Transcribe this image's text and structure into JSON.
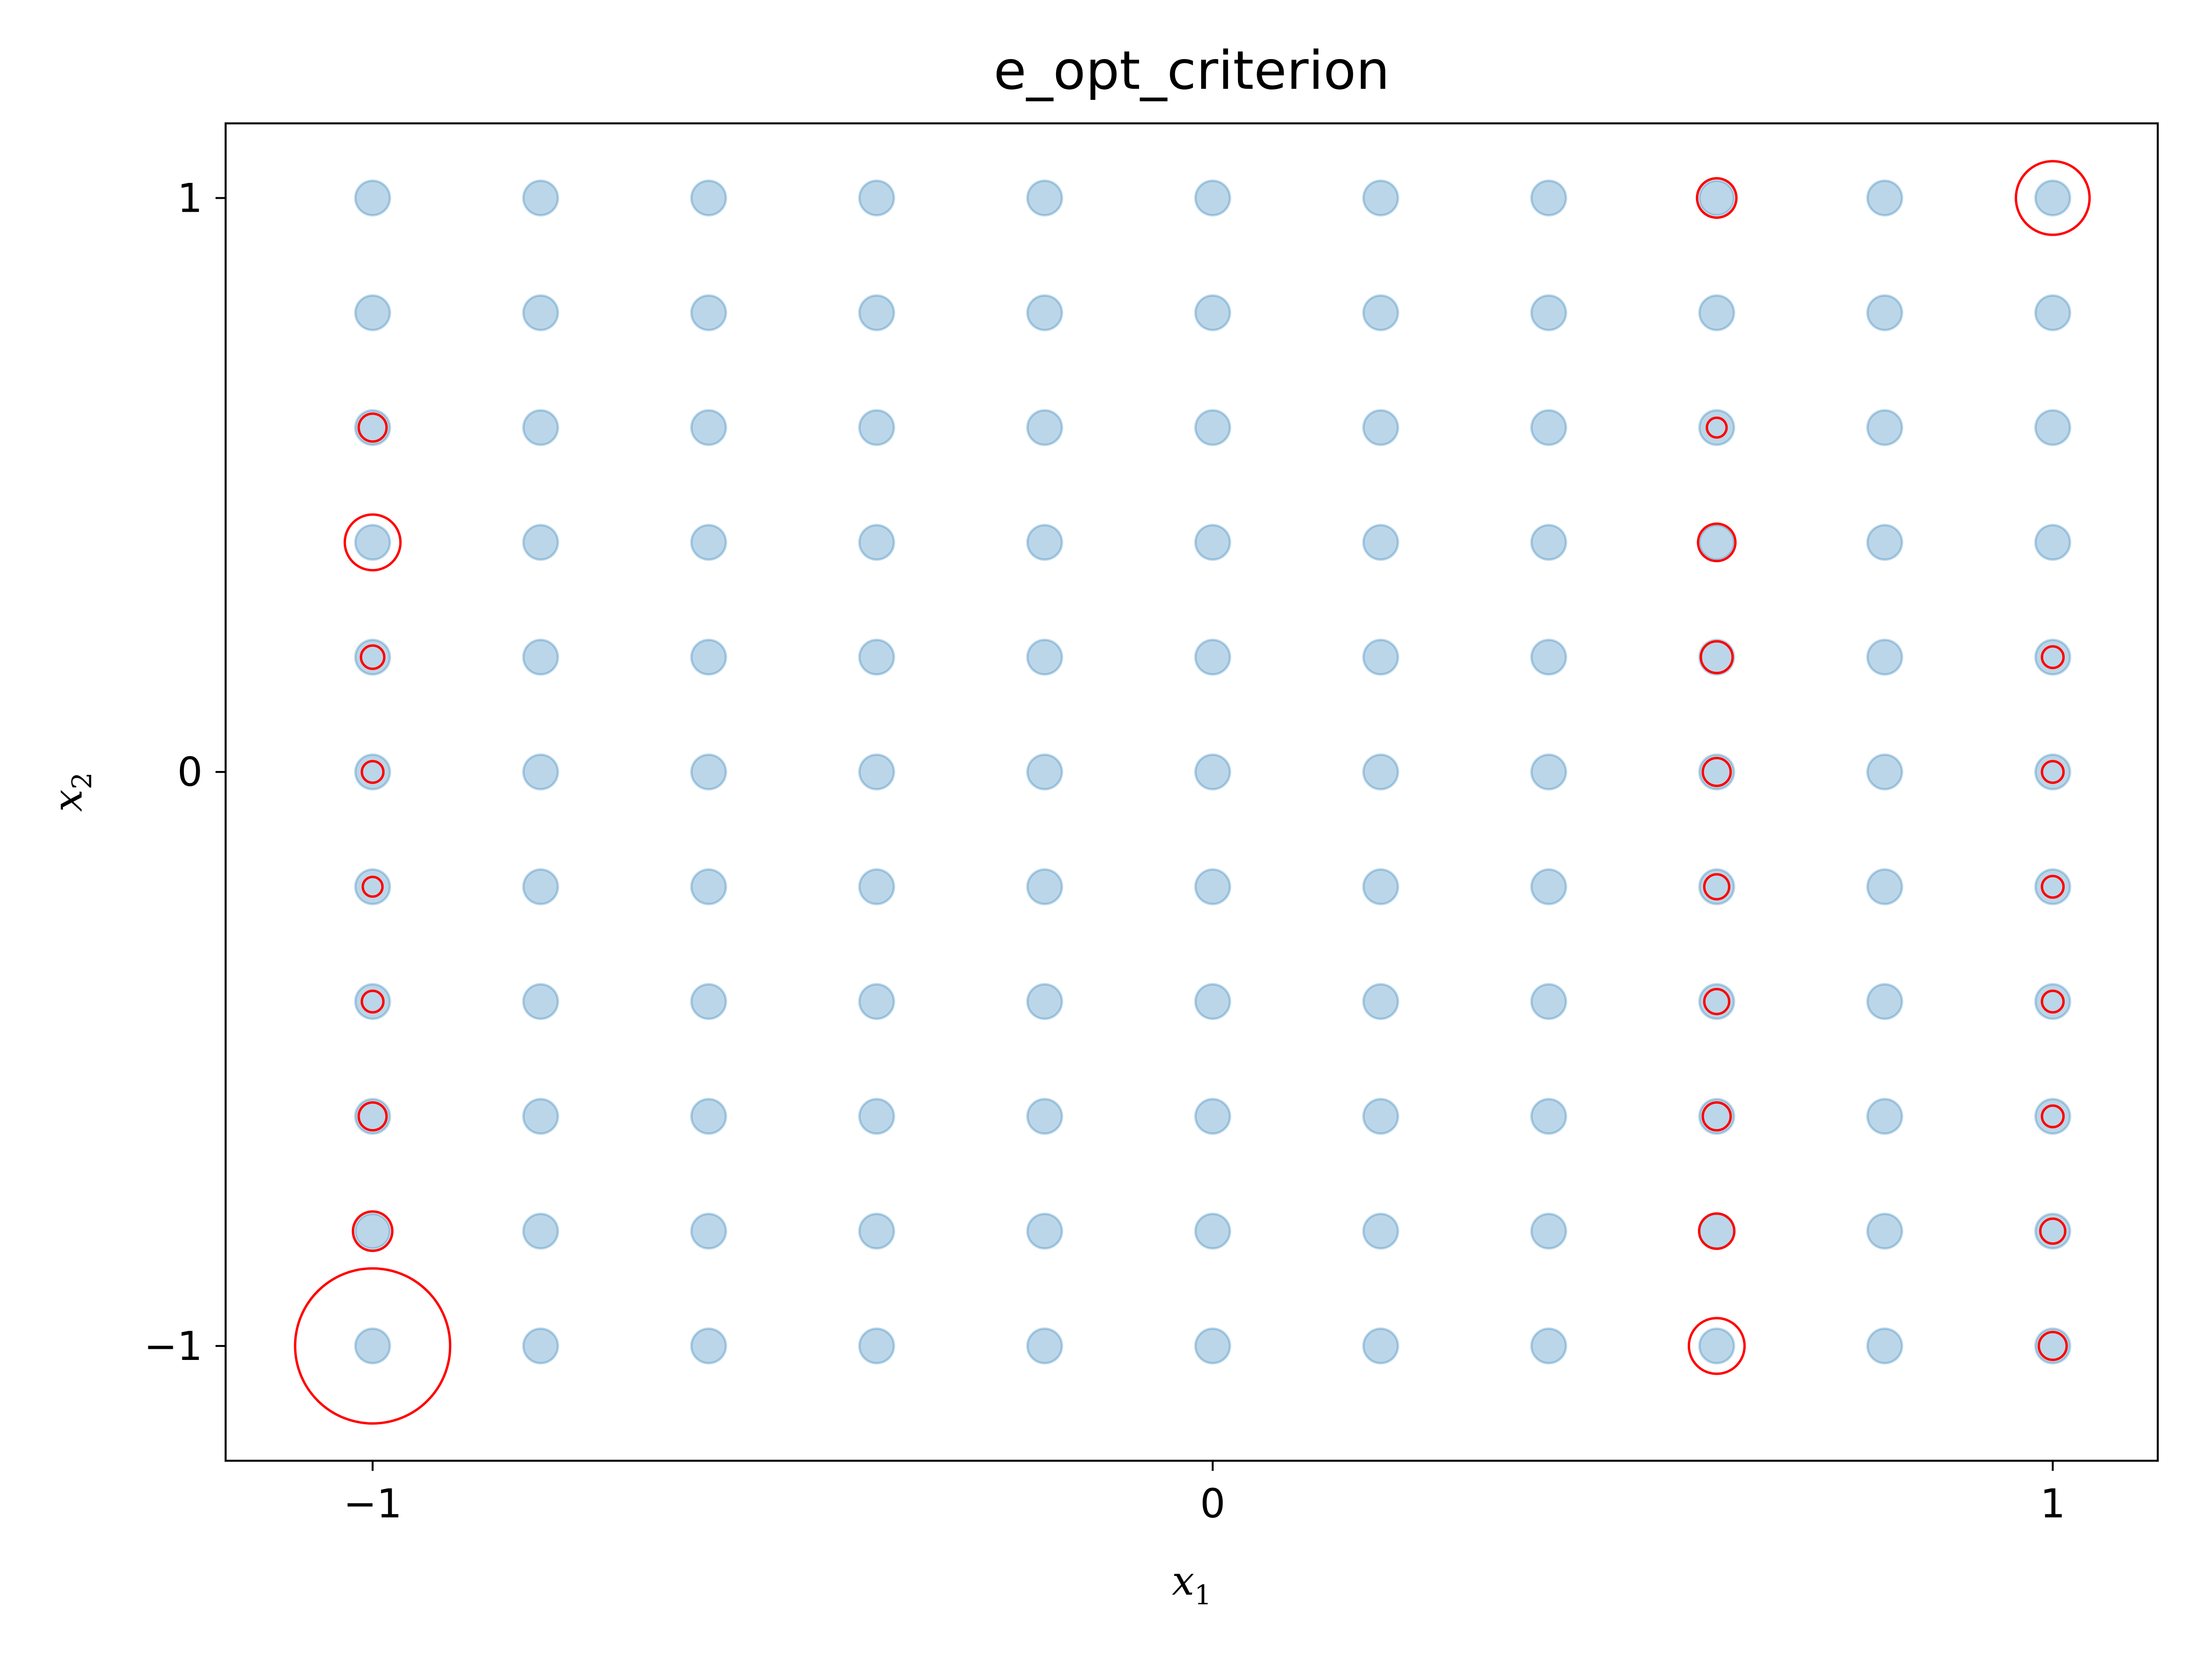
{
  "chart_data": {
    "type": "scatter",
    "title": "e_opt_criterion",
    "xlabel": {
      "base": "x",
      "sub": "1"
    },
    "ylabel": {
      "base": "x",
      "sub": "2"
    },
    "xlim": [
      -1.175,
      1.125
    ],
    "ylim": [
      -1.2,
      1.13
    ],
    "xticks": [
      -1,
      0,
      1
    ],
    "yticks": [
      -1,
      0,
      1
    ],
    "xtick_labels": [
      "−1",
      "0",
      "1"
    ],
    "ytick_labels": [
      "−1",
      "0",
      "1"
    ],
    "grid": false,
    "legend": "none",
    "colors": {
      "candidates": "#1f77b4",
      "candidates_alpha": 0.3,
      "design": "#ff0000"
    },
    "candidate_grid": {
      "x": [
        -1,
        -0.8,
        -0.6,
        -0.4,
        -0.2,
        0,
        0.2,
        0.4,
        0.6,
        0.8,
        1
      ],
      "y": [
        -1,
        -0.8,
        -0.6,
        -0.4,
        -0.2,
        0,
        0.2,
        0.4,
        0.6,
        0.8,
        1
      ]
    },
    "design_points": [
      {
        "x": -1,
        "y": -1,
        "weight": 0.31
      },
      {
        "x": -1,
        "y": -0.8,
        "weight": 0.02
      },
      {
        "x": -1,
        "y": -0.6,
        "weight": 0.01
      },
      {
        "x": -1,
        "y": -0.4,
        "weight": 0.006
      },
      {
        "x": -1,
        "y": -0.2,
        "weight": 0.005
      },
      {
        "x": -1,
        "y": 0,
        "weight": 0.006
      },
      {
        "x": -1,
        "y": 0.2,
        "weight": 0.007
      },
      {
        "x": -1,
        "y": 0.4,
        "weight": 0.04
      },
      {
        "x": -1,
        "y": 0.6,
        "weight": 0.01
      },
      {
        "x": 0.6,
        "y": 1,
        "weight": 0.02
      },
      {
        "x": 0.6,
        "y": 0.6,
        "weight": 0.005
      },
      {
        "x": 0.6,
        "y": 0.4,
        "weight": 0.018
      },
      {
        "x": 0.6,
        "y": 0.2,
        "weight": 0.013
      },
      {
        "x": 0.6,
        "y": 0,
        "weight": 0.01
      },
      {
        "x": 0.6,
        "y": -0.2,
        "weight": 0.008
      },
      {
        "x": 0.6,
        "y": -0.4,
        "weight": 0.008
      },
      {
        "x": 0.6,
        "y": -0.6,
        "weight": 0.01
      },
      {
        "x": 0.6,
        "y": -0.8,
        "weight": 0.016
      },
      {
        "x": 0.6,
        "y": -1,
        "weight": 0.04
      },
      {
        "x": 1,
        "y": 1,
        "weight": 0.07
      },
      {
        "x": 1,
        "y": 0.2,
        "weight": 0.006
      },
      {
        "x": 1,
        "y": 0,
        "weight": 0.006
      },
      {
        "x": 1,
        "y": -0.2,
        "weight": 0.006
      },
      {
        "x": 1,
        "y": -0.4,
        "weight": 0.006
      },
      {
        "x": 1,
        "y": -0.6,
        "weight": 0.006
      },
      {
        "x": 1,
        "y": -0.8,
        "weight": 0.008
      },
      {
        "x": 1,
        "y": -1,
        "weight": 0.01
      }
    ]
  }
}
